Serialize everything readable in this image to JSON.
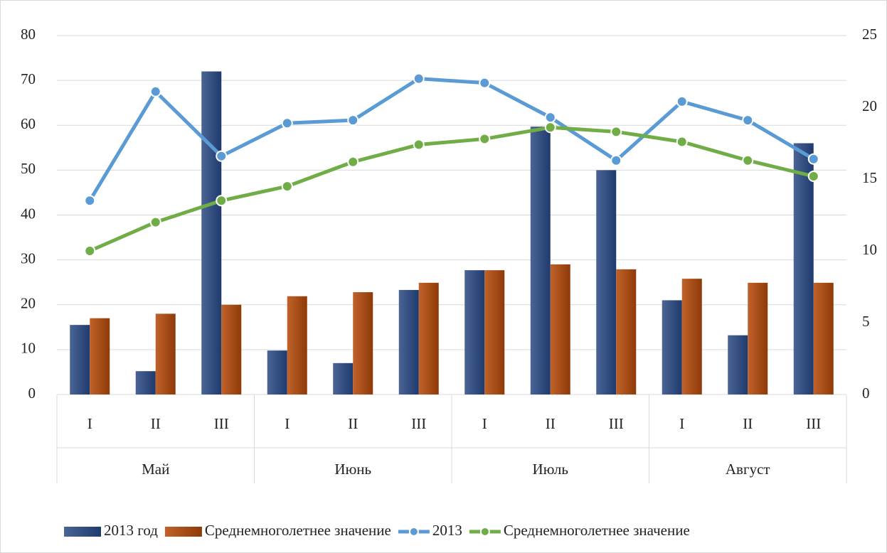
{
  "chart_data": {
    "type": "bar-line",
    "categories": [
      "I",
      "II",
      "III",
      "I",
      "II",
      "III",
      "I",
      "II",
      "III",
      "I",
      "II",
      "III"
    ],
    "groups": [
      "Май",
      "Июнь",
      "Июль",
      "Август"
    ],
    "series": [
      {
        "name": "2013 год",
        "type": "bar",
        "color": "#2e4a7d",
        "values": [
          15.5,
          5.2,
          72,
          9.8,
          7,
          23.3,
          27.7,
          59.7,
          50,
          21,
          13.2,
          56
        ]
      },
      {
        "name": "Среднемноголетнее значение",
        "type": "bar",
        "color": "#a3460f",
        "values": [
          17,
          18,
          20,
          21.9,
          22.8,
          24.9,
          27.7,
          29,
          27.9,
          25.8,
          24.9,
          24.9
        ]
      },
      {
        "name": "2013",
        "type": "line",
        "axis": "y2",
        "color": "#5b9bd5",
        "values": [
          13.5,
          21.1,
          16.6,
          18.9,
          19.1,
          22,
          21.7,
          19.3,
          16.3,
          20.4,
          19.1,
          16.4
        ]
      },
      {
        "name": "Среднемноголетнее значение",
        "type": "line",
        "axis": "y2",
        "color": "#70ad47",
        "values": [
          10,
          12,
          13.5,
          14.5,
          16.2,
          17.4,
          17.8,
          18.6,
          18.3,
          17.6,
          16.3,
          15.2
        ]
      }
    ],
    "ylim": [
      0,
      80
    ],
    "yticks": [
      0,
      10,
      20,
      30,
      40,
      50,
      60,
      70,
      80
    ],
    "y2lim": [
      0,
      25
    ],
    "y2ticks": [
      0,
      5,
      10,
      15,
      20,
      25
    ],
    "grid": true,
    "legend": "bottom"
  }
}
